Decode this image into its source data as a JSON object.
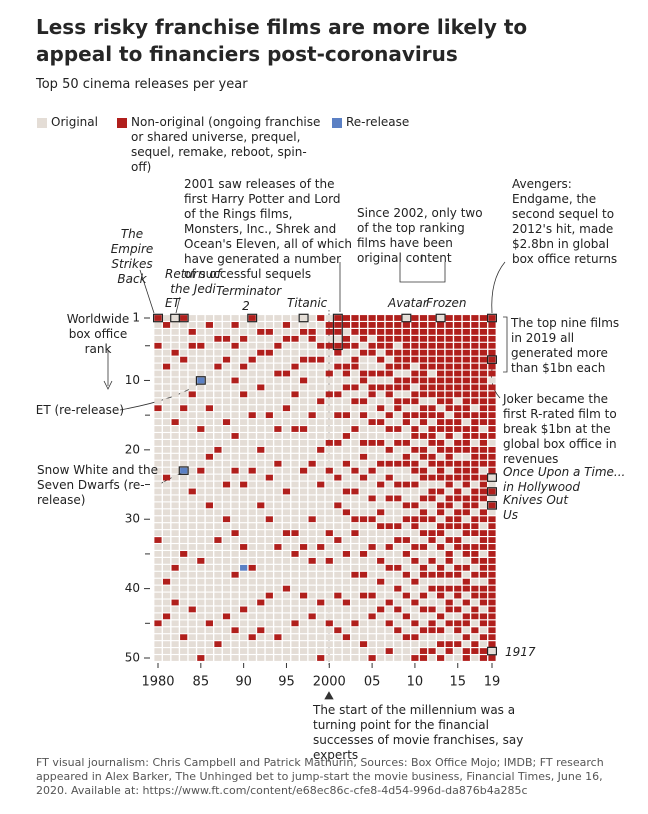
{
  "chart_data": {
    "type": "waffle",
    "title": "Less risky franchise films are more likely to appeal to financiers post-coronavirus",
    "subtitle": "Top 50 cinema releases per year",
    "y_label": "Worldwide box office rank",
    "series": [
      {
        "name": "Original",
        "color": "#e4ddd6"
      },
      {
        "name": "Non-original (ongoing franchise or shared universe, prequel, sequel, remake, reboot, spin-off)",
        "color": "#b01f1c"
      },
      {
        "name": "Re-release",
        "color": "#5b80c4"
      }
    ],
    "x": [
      1980,
      1981,
      1982,
      1983,
      1984,
      1985,
      1986,
      1987,
      1988,
      1989,
      1990,
      1991,
      1992,
      1993,
      1994,
      1995,
      1996,
      1997,
      1998,
      1999,
      2000,
      2001,
      2002,
      2003,
      2004,
      2005,
      2006,
      2007,
      2008,
      2009,
      2010,
      2011,
      2012,
      2013,
      2014,
      2015,
      2016,
      2017,
      2018,
      2019
    ],
    "columns": [
      "10001000000001000000000000000000100000000000100000",
      "01000001000000000000000100000000000000100001000000",
      "00000100000000010000000000000000000010000100000000",
      "10000010000001000000002000000000001000000000001000",
      "00101000000100000000000001000000000000000010000000",
      "00001000020000001000001000000000000100000000000001",
      "01000000000001000000100000010000000000000000100000",
      "00010001000000000001000000000000100000000000000100",
      "00010010000000010000000010000100000000000001000000",
      "01001000010000000100001000000001000001000000010000",
      "00010001000100000000000010000000010020000010000000",
      "10000010000000100000001000000000000010000000001000",
      "00100100001000000001000000010000000000000100010000",
      "00100100000000100000000100000100000000001000000000",
      "00001000100000001000010000000000010000000000001000",
      "01010000100001000000000001000001000000010000000000",
      "00010001000100001000000000000001001000000000100000",
      "00100010010000001000001000000000010000001000000000",
      "00110010000000100000010000000100000100000001000000",
      "10001010000010000001000010000000010000000100000001",
      "01101000100100000010001000000001000100000000100000",
      "11101101000100100010000100010000100000001000010000",
      "11011001101000100100010001001000001000000100001000",
      "11101011001010001000001001000101000001000000100000",
      "11110100110010100010100100000100001001001000000100",
      "11101100101100010010001000100100010000001001000001",
      "11111010101001010010010010001010000100100010000000",
      "11111101101100101001010100100010010010000100100010",
      "11110111011011001010010010100010100010010010010000",
      "01111111011010110010110010010100101001001001001000",
      "11111110110110101101011010010110010100100100101001",
      "11111111111101110101101100101101010011001010010011",
      "11111111011101101110110101100101100101010010110010",
      "01111111111110111011011101011011010011011001010101",
      "11111111111111011101110110110110101101010110100110",
      "11111111111101111011011101101110110011011010110100",
      "11111111111111101111011110111011011010110101101011",
      "11111111111110111101111101110111011101011011010110",
      "11111111111111110111110111101101110111011101101011",
      "11111111101111111101111001010111111111111111111101"
    ],
    "xlim": [
      1980,
      2019
    ],
    "xticks": [
      1980,
      {
        "value": 1985,
        "label": "85"
      },
      {
        "value": 1990,
        "label": "90"
      },
      {
        "value": 1995,
        "label": "95"
      },
      2000,
      {
        "value": 2005,
        "label": "05"
      },
      {
        "value": 2010,
        "label": "10"
      },
      {
        "value": 2015,
        "label": "15"
      },
      {
        "value": 2019,
        "label": "19"
      }
    ],
    "ylim": [
      1,
      50
    ],
    "yticks": [
      1,
      10,
      20,
      30,
      40,
      50
    ],
    "yminor": [
      5,
      15,
      25,
      35,
      45
    ],
    "annotations": [
      "The Empire Strikes Back",
      "Return of the Jedi",
      "ET",
      "Terminator 2",
      "Titanic",
      "2001 saw releases of the first Harry Potter and Lord of the Rings films, Monsters, Inc., Shrek and Ocean's Eleven, all of which have generated a number of successful sequels",
      "Since 2002, only two of the top ranking films have been original content",
      "Avatar",
      "Frozen",
      "Avengers: Endgame, the second sequel to 2012's hit, made $2.8bn in global box office returns",
      "The top nine films in 2019 all generated more than $1bn each",
      "Joker became the first R-rated film to break $1bn at the global box office in revenues",
      "Once Upon a Time... in Hollywood",
      "Knives Out",
      "Us",
      "1917",
      "ET (re-release)",
      "Snow White and the Seven Dwarfs (re-release)",
      "The start of the millennium was a turning point for the financial successes of movie franchises, say experts"
    ],
    "source": "FT visual journalism: Chris Campbell and Patrick Mathurin, Sources: Box Office Mojo; IMDB; FT research appeared in Alex Barker, The Unhinged bet to jump-start the movie business, Financial Times, June 16, 2020. Available at: https://www.ft.com/content/e68ec86c-cfe8-4d54-996d-da876b4a285c"
  }
}
